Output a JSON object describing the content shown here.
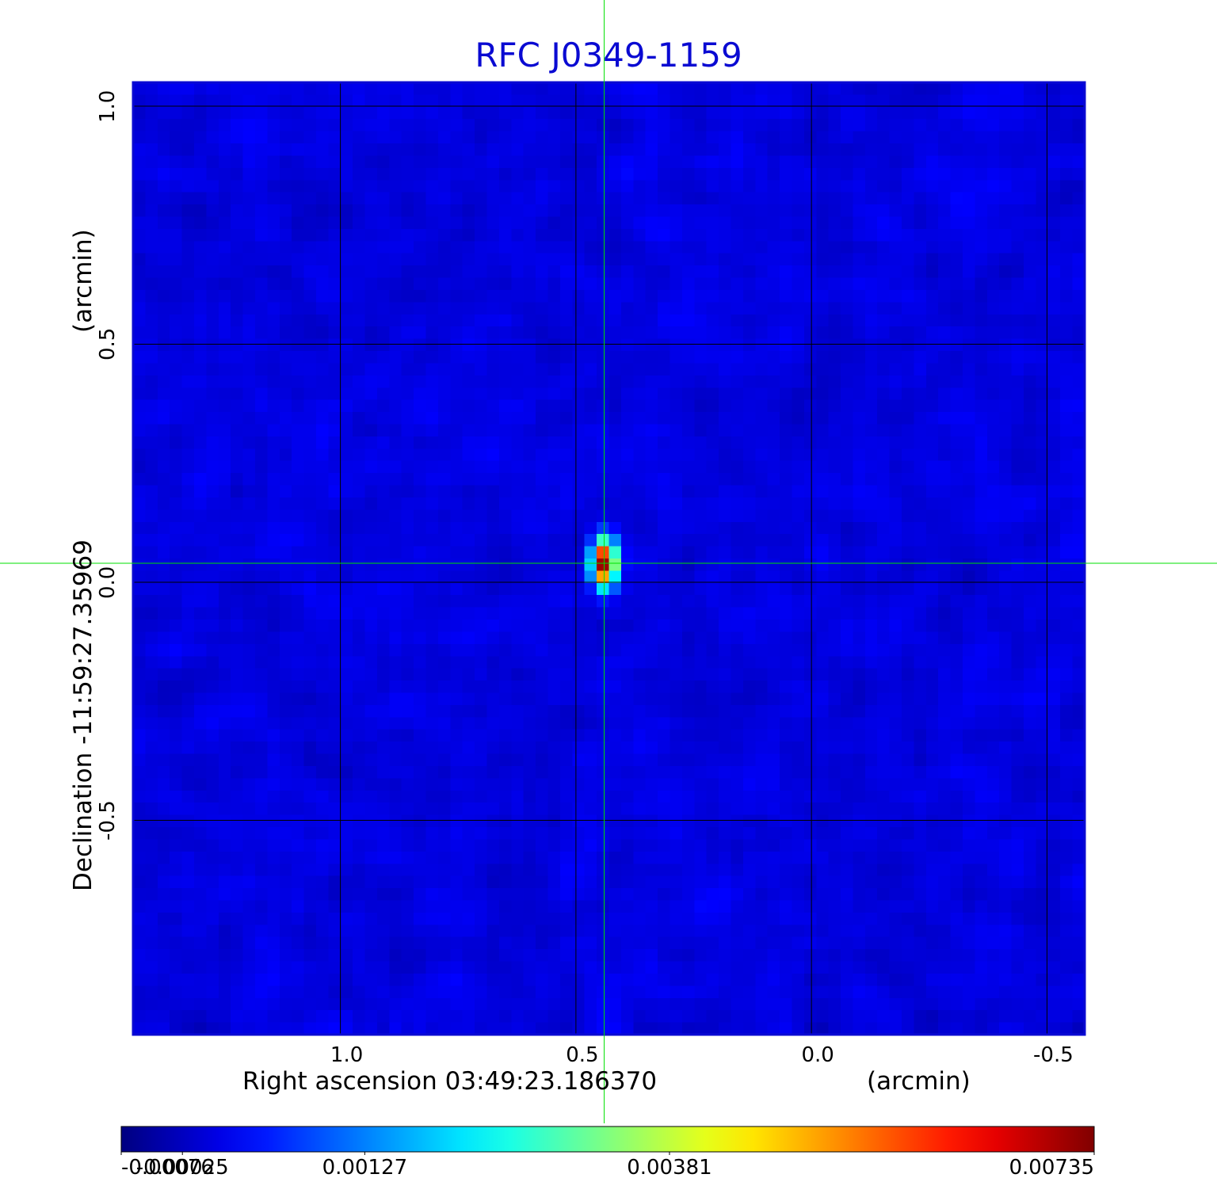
{
  "chart_data": {
    "type": "heatmap",
    "title": "RFC J0349-1159",
    "xlabel": "Right ascension  03:49:23.186370",
    "xunit": "(arcmin)",
    "ylabel": "Declination  -11:59:27.35969",
    "yunit": "(arcmin)",
    "x_range": [
      1.44,
      -0.58
    ],
    "y_range": [
      -0.95,
      1.05
    ],
    "x_ticks": [
      {
        "value": 1.0,
        "label": "1.0"
      },
      {
        "value": 0.5,
        "label": "0.5"
      },
      {
        "value": 0.0,
        "label": "0.0"
      },
      {
        "value": -0.5,
        "label": "-0.5"
      }
    ],
    "y_ticks": [
      {
        "value": 1.0,
        "label": "1.0"
      },
      {
        "value": 0.5,
        "label": "0.5"
      },
      {
        "value": 0.0,
        "label": "0.0"
      },
      {
        "value": -0.5,
        "label": "-0.5"
      }
    ],
    "grid": true,
    "colormap": "jet",
    "colorbar": {
      "min": -0.00076,
      "max": 0.00735,
      "ticks": [
        {
          "value": -0.00076,
          "label": "-0.00076"
        },
        {
          "value": -0.00025,
          "label": "-0.00025"
        },
        {
          "value": 0.00127,
          "label": "0.00127"
        },
        {
          "value": 0.00381,
          "label": "0.00381"
        },
        {
          "value": 0.00735,
          "label": "0.00735"
        }
      ]
    },
    "background_level": 0.0,
    "noise_level": 0.0002,
    "source": {
      "x": 0.44,
      "y": 0.04,
      "peak": 0.00735
    },
    "crosshair": {
      "x": 0.44,
      "y": 0.04,
      "color": "#00e000"
    }
  },
  "colors": {
    "title": "#0a0ad2",
    "frame": "#0a0ad2",
    "grid": "#000000",
    "crosshair": "#00e000"
  }
}
